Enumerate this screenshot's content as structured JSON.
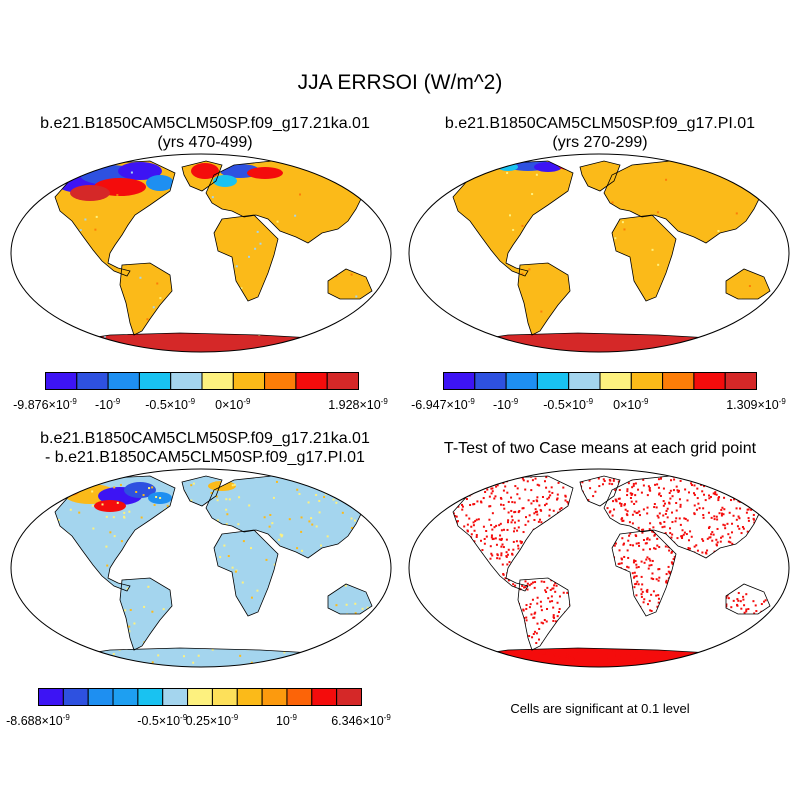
{
  "figure": {
    "title": "JJA ERRSOI (W/m^2)"
  },
  "panels": {
    "p1": {
      "title_line1": "b.e21.B1850CAM5CLM50SP.f09_g17.21ka.01",
      "title_line2": "(yrs 470-499)",
      "colorbar": {
        "colors": [
          "#3d14f4",
          "#2e51e0",
          "#1e8ff1",
          "#19c2f1",
          "#a4d5ee",
          "#fdf17f",
          "#fbba19",
          "#fc7d08",
          "#f40c0c",
          "#d52828"
        ],
        "labels": [
          {
            "m": "-9.876",
            "e": "-9",
            "pos": 0
          },
          {
            "m": "-10",
            "e": "-9",
            "pos": 2,
            "power": true
          },
          {
            "m": "-0.5",
            "e": "-9",
            "pos": 4
          },
          {
            "m": "0",
            "e": "-9",
            "pos": 6
          },
          {
            "m": "1.928",
            "e": "-9",
            "pos": 10
          }
        ]
      }
    },
    "p2": {
      "title_line1": "b.e21.B1850CAM5CLM50SP.f09_g17.PI.01",
      "title_line2": "(yrs 270-299)",
      "colorbar": {
        "colors": [
          "#3d14f4",
          "#2e51e0",
          "#1e8ff1",
          "#19c2f1",
          "#a4d5ee",
          "#fdf17f",
          "#fbba19",
          "#fc7d08",
          "#f40c0c",
          "#d52828"
        ],
        "labels": [
          {
            "m": "-6.947",
            "e": "-9",
            "pos": 0
          },
          {
            "m": "-10",
            "e": "-9",
            "pos": 2,
            "power": true
          },
          {
            "m": "-0.5",
            "e": "-9",
            "pos": 4
          },
          {
            "m": "0",
            "e": "-9",
            "pos": 6
          },
          {
            "m": "1.309",
            "e": "-9",
            "pos": 10
          }
        ]
      }
    },
    "p3": {
      "title_line1": "b.e21.B1850CAM5CLM50SP.f09_g17.21ka.01",
      "title_line2": "- b.e21.B1850CAM5CLM50SP.f09_g17.PI.01",
      "colorbar": {
        "colors": [
          "#3d14f4",
          "#2e51e0",
          "#1e8ff1",
          "#1e9ff1",
          "#19c2f1",
          "#a4d5ee",
          "#fdf17f",
          "#fde05a",
          "#fbba19",
          "#fc9a0e",
          "#fc6408",
          "#f40c0c",
          "#d52828"
        ],
        "labels": [
          {
            "m": "-8.688",
            "e": "-9",
            "pos": 0
          },
          {
            "m": "-0.5",
            "e": "-9",
            "pos": 5
          },
          {
            "m": "0.25",
            "e": "-9",
            "pos": 7
          },
          {
            "m": "10",
            "e": "-9",
            "pos": 10,
            "power": true
          },
          {
            "m": "6.346",
            "e": "-9",
            "pos": 13
          }
        ]
      }
    },
    "p4": {
      "title": "T-Test of two Case means at each grid point",
      "note": "Cells are significant at 0.1 level"
    }
  },
  "colors": {
    "land_base": "#fbba19",
    "diff_base": "#a4d5ee",
    "significant": "#f40c0c",
    "ice": "#d52828"
  }
}
